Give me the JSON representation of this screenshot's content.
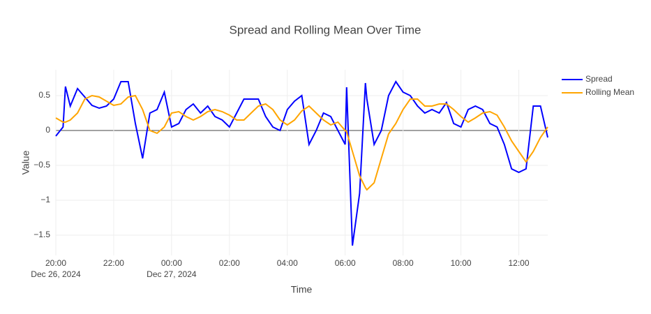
{
  "chart_data": {
    "type": "line",
    "title": "Spread and Rolling Mean Over Time",
    "x_label": "Time",
    "y_label": "Value",
    "x": [
      "2024-12-26 20:00",
      "2024-12-26 20:15",
      "2024-12-26 20:20",
      "2024-12-26 20:30",
      "2024-12-26 20:45",
      "2024-12-26 21:00",
      "2024-12-26 21:15",
      "2024-12-26 21:30",
      "2024-12-26 21:45",
      "2024-12-26 22:00",
      "2024-12-26 22:15",
      "2024-12-26 22:30",
      "2024-12-26 22:45",
      "2024-12-26 23:00",
      "2024-12-26 23:15",
      "2024-12-26 23:30",
      "2024-12-26 23:45",
      "2024-12-27 00:00",
      "2024-12-27 00:15",
      "2024-12-27 00:30",
      "2024-12-27 00:45",
      "2024-12-27 01:00",
      "2024-12-27 01:15",
      "2024-12-27 01:30",
      "2024-12-27 01:45",
      "2024-12-27 02:00",
      "2024-12-27 02:15",
      "2024-12-27 02:30",
      "2024-12-27 02:45",
      "2024-12-27 03:00",
      "2024-12-27 03:15",
      "2024-12-27 03:30",
      "2024-12-27 03:45",
      "2024-12-27 04:00",
      "2024-12-27 04:15",
      "2024-12-27 04:30",
      "2024-12-27 04:45",
      "2024-12-27 05:00",
      "2024-12-27 05:15",
      "2024-12-27 05:30",
      "2024-12-27 05:45",
      "2024-12-27 06:00",
      "2024-12-27 06:03",
      "2024-12-27 06:15",
      "2024-12-27 06:30",
      "2024-12-27 06:42",
      "2024-12-27 06:45",
      "2024-12-27 07:00",
      "2024-12-27 07:15",
      "2024-12-27 07:30",
      "2024-12-27 07:45",
      "2024-12-27 08:00",
      "2024-12-27 08:15",
      "2024-12-27 08:30",
      "2024-12-27 08:45",
      "2024-12-27 09:00",
      "2024-12-27 09:15",
      "2024-12-27 09:30",
      "2024-12-27 09:45",
      "2024-12-27 10:00",
      "2024-12-27 10:15",
      "2024-12-27 10:30",
      "2024-12-27 10:45",
      "2024-12-27 11:00",
      "2024-12-27 11:15",
      "2024-12-27 11:30",
      "2024-12-27 11:45",
      "2024-12-27 12:00",
      "2024-12-27 12:15",
      "2024-12-27 12:30",
      "2024-12-27 12:45",
      "2024-12-27 13:00"
    ],
    "series": [
      {
        "name": "Spread",
        "color": "#0000ff",
        "values": [
          -0.08,
          0.05,
          0.63,
          0.35,
          0.6,
          0.48,
          0.36,
          0.32,
          0.35,
          0.45,
          0.7,
          0.7,
          0.1,
          -0.4,
          0.25,
          0.3,
          0.55,
          0.05,
          0.1,
          0.3,
          0.38,
          0.25,
          0.35,
          0.2,
          0.15,
          0.05,
          0.25,
          0.45,
          0.45,
          0.45,
          0.2,
          0.05,
          0.0,
          0.3,
          0.42,
          0.5,
          -0.2,
          0.0,
          0.25,
          0.2,
          0.0,
          -0.2,
          0.62,
          -1.65,
          -0.9,
          0.68,
          0.45,
          -0.2,
          0.0,
          0.5,
          0.7,
          0.55,
          0.5,
          0.35,
          0.25,
          0.3,
          0.25,
          0.4,
          0.1,
          0.05,
          0.3,
          0.35,
          0.3,
          0.1,
          0.05,
          -0.2,
          -0.55,
          -0.6,
          -0.55,
          0.35,
          0.35,
          -0.1
        ]
      },
      {
        "name": "Rolling Mean",
        "color": "#ffa500",
        "values": [
          0.18,
          0.12,
          0.12,
          0.15,
          0.25,
          0.45,
          0.5,
          0.48,
          0.42,
          0.36,
          0.38,
          0.48,
          0.5,
          0.3,
          0.0,
          -0.04,
          0.05,
          0.25,
          0.27,
          0.2,
          0.15,
          0.2,
          0.27,
          0.3,
          0.27,
          0.22,
          0.15,
          0.15,
          0.25,
          0.35,
          0.38,
          0.3,
          0.15,
          0.08,
          0.15,
          0.28,
          0.35,
          0.25,
          0.15,
          0.08,
          0.12,
          0.0,
          -0.02,
          -0.3,
          -0.65,
          -0.82,
          -0.85,
          -0.75,
          -0.4,
          -0.05,
          0.1,
          0.3,
          0.45,
          0.45,
          0.35,
          0.35,
          0.38,
          0.38,
          0.3,
          0.2,
          0.12,
          0.18,
          0.25,
          0.27,
          0.22,
          0.05,
          -0.15,
          -0.3,
          -0.45,
          -0.3,
          -0.1,
          0.05
        ]
      }
    ],
    "xlim": [
      "2024-12-26 20:00",
      "2024-12-27 13:00"
    ],
    "xticks": [
      {
        "value": "2024-12-26 20:00",
        "label": "20:00\nDec 26, 2024"
      },
      {
        "value": "2024-12-26 22:00",
        "label": "22:00"
      },
      {
        "value": "2024-12-27 00:00",
        "label": "00:00\nDec 27, 2024"
      },
      {
        "value": "2024-12-27 02:00",
        "label": "02:00"
      },
      {
        "value": "2024-12-27 04:00",
        "label": "04:00"
      },
      {
        "value": "2024-12-27 06:00",
        "label": "06:00"
      },
      {
        "value": "2024-12-27 08:00",
        "label": "08:00"
      },
      {
        "value": "2024-12-27 10:00",
        "label": "10:00"
      },
      {
        "value": "2024-12-27 12:00",
        "label": "12:00"
      }
    ],
    "ylim": [
      -1.79,
      0.87
    ],
    "yticks": [
      {
        "value": -1.5,
        "label": "−1.5"
      },
      {
        "value": -1,
        "label": "−1"
      },
      {
        "value": -0.5,
        "label": "−0.5"
      },
      0,
      0.5
    ],
    "grid": true,
    "legend": "top-right"
  }
}
